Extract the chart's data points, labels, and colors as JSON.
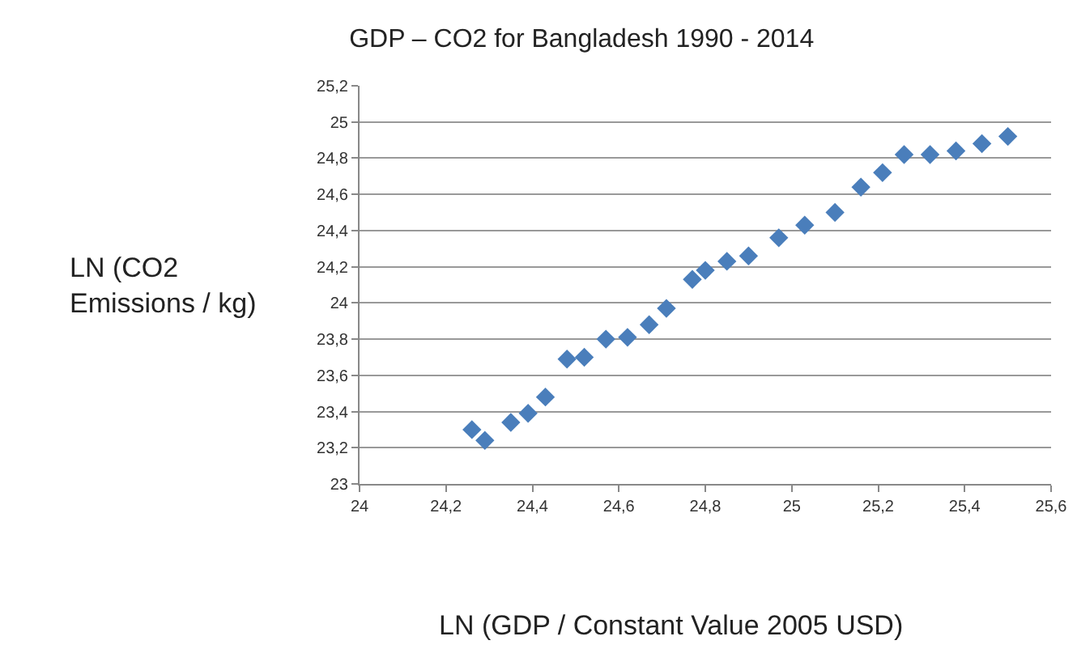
{
  "chart_data": {
    "type": "scatter",
    "title": "GDP – CO2 for Bangladesh 1990 - 2014",
    "xlabel": "LN (GDP / Constant Value 2005 USD)",
    "ylabel": "LN (CO2 Emissions / kg)",
    "x": [
      24.26,
      24.29,
      24.35,
      24.39,
      24.43,
      24.48,
      24.52,
      24.57,
      24.62,
      24.67,
      24.71,
      24.77,
      24.8,
      24.85,
      24.9,
      24.97,
      25.03,
      25.1,
      25.16,
      25.21,
      25.26,
      25.32,
      25.38,
      25.44,
      25.5
    ],
    "values": [
      23.3,
      23.24,
      23.34,
      23.39,
      23.48,
      23.69,
      23.7,
      23.8,
      23.81,
      23.88,
      23.97,
      24.13,
      24.18,
      24.23,
      24.26,
      24.36,
      24.43,
      24.5,
      24.64,
      24.72,
      24.82,
      24.82,
      24.84,
      24.88,
      24.92
    ],
    "color": "#4a7ebb",
    "marker": "diamond",
    "grid": "y",
    "xlim": [
      24,
      25.6
    ],
    "xticks": [
      24,
      {
        "value": 24.2,
        "label": "24,2"
      },
      {
        "value": 24.4,
        "label": "24,4"
      },
      {
        "value": 24.6,
        "label": "24,6"
      },
      {
        "value": 24.8,
        "label": "24,8"
      },
      25,
      {
        "value": 25.2,
        "label": "25,2"
      },
      {
        "value": 25.4,
        "label": "25,4"
      },
      {
        "value": 25.6,
        "label": "25,6"
      }
    ],
    "ylim": [
      23,
      25.2
    ],
    "yticks": [
      23,
      {
        "value": 23.2,
        "label": "23,2"
      },
      {
        "value": 23.4,
        "label": "23,4"
      },
      {
        "value": 23.6,
        "label": "23,6"
      },
      {
        "value": 23.8,
        "label": "23,8"
      },
      24,
      {
        "value": 24.2,
        "label": "24,2"
      },
      {
        "value": 24.4,
        "label": "24,4"
      },
      {
        "value": 24.6,
        "label": "24,6"
      },
      {
        "value": 24.8,
        "label": "24,8"
      },
      25,
      {
        "value": 25.2,
        "label": "25,2"
      }
    ]
  }
}
